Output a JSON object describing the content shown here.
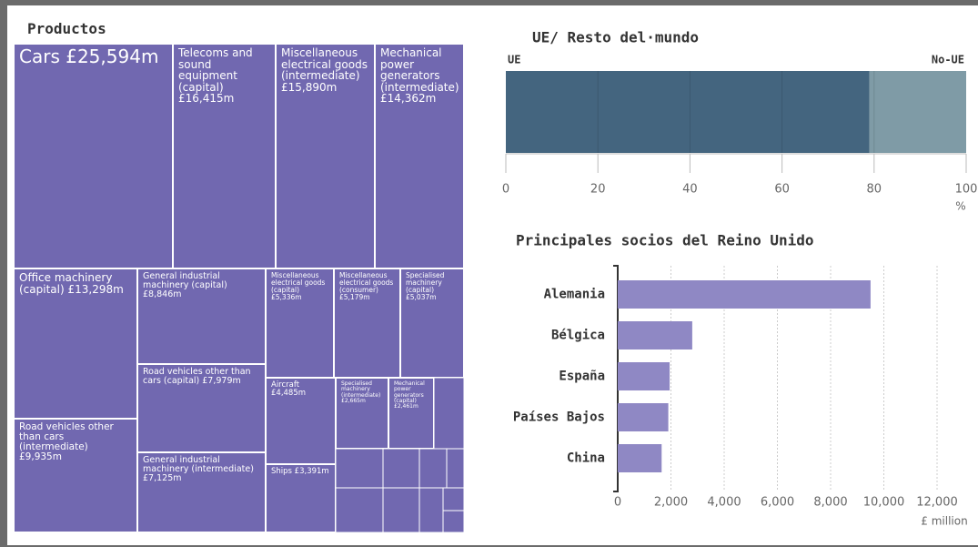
{
  "chart_data": [
    {
      "type": "treemap",
      "title": "Productos",
      "color": "#7168b0",
      "labels": [
        "Cars",
        "Telecoms and sound equipment (capital)",
        "Miscellaneous electrical goods (intermediate)",
        "Mechanical power generators (intermediate)",
        "Office machinery (capital)",
        "Road vehicles other than cars (intermediate)",
        "General industrial machinery (capital)",
        "Road vehicles other than cars (capital)",
        "General industrial machinery (intermediate)",
        "Miscellaneous electrical goods (capital)",
        "Miscellaneous electrical goods (consumer)",
        "Specialised machinery (capital)",
        "Aircraft",
        "Ships",
        "Specialised machinery (intermediate)",
        "Mechanical power generators (capital)"
      ],
      "values": [
        25594,
        16415,
        15890,
        14362,
        13298,
        9935,
        8846,
        7979,
        7125,
        5336,
        5179,
        5037,
        4485,
        3391,
        2665,
        2461
      ],
      "value_labels": [
        "£25,594m",
        "£16,415m",
        "£15,890m",
        "£14,362m",
        "£13,298m",
        "£9,935m",
        "£8,846m",
        "£7,979m",
        "£7,125m",
        "£5,336m",
        "£5,179m",
        "£5,037m",
        "£4,485m",
        "£3,391m",
        "£2,665m",
        "£2,461m"
      ]
    },
    {
      "type": "bar",
      "orientation": "horizontal",
      "stacked": true,
      "title": "UE/ Resto del·mundo",
      "series": [
        {
          "name": "UE",
          "color": "#44657f",
          "values": [
            79
          ]
        },
        {
          "name": "No-UE",
          "color": "#7f9ba6",
          "values": [
            21
          ]
        }
      ],
      "xlim": [
        0,
        100
      ],
      "xticks": [
        0,
        20,
        40,
        60,
        80,
        100
      ],
      "x_label": "%",
      "grid": true
    },
    {
      "type": "bar",
      "orientation": "horizontal",
      "title": "Principales socios del Reino Unido",
      "color": "#8f88c4",
      "categories": [
        "Alemania",
        "Bélgica",
        "España",
        "Países Bajos",
        "China"
      ],
      "values": [
        9500,
        2800,
        1950,
        1900,
        1650
      ],
      "xlim": [
        0,
        12000
      ],
      "xticks": [
        0,
        {
          "value": 2000,
          "label": "2,000"
        },
        {
          "value": 4000,
          "label": "4,000"
        },
        {
          "value": 6000,
          "label": "6,000"
        },
        {
          "value": 8000,
          "label": "8,000"
        },
        {
          "value": 10000,
          "label": "10,000"
        },
        {
          "value": 12000,
          "label": "12,000"
        }
      ],
      "x_label": "£ million",
      "grid": true
    }
  ]
}
